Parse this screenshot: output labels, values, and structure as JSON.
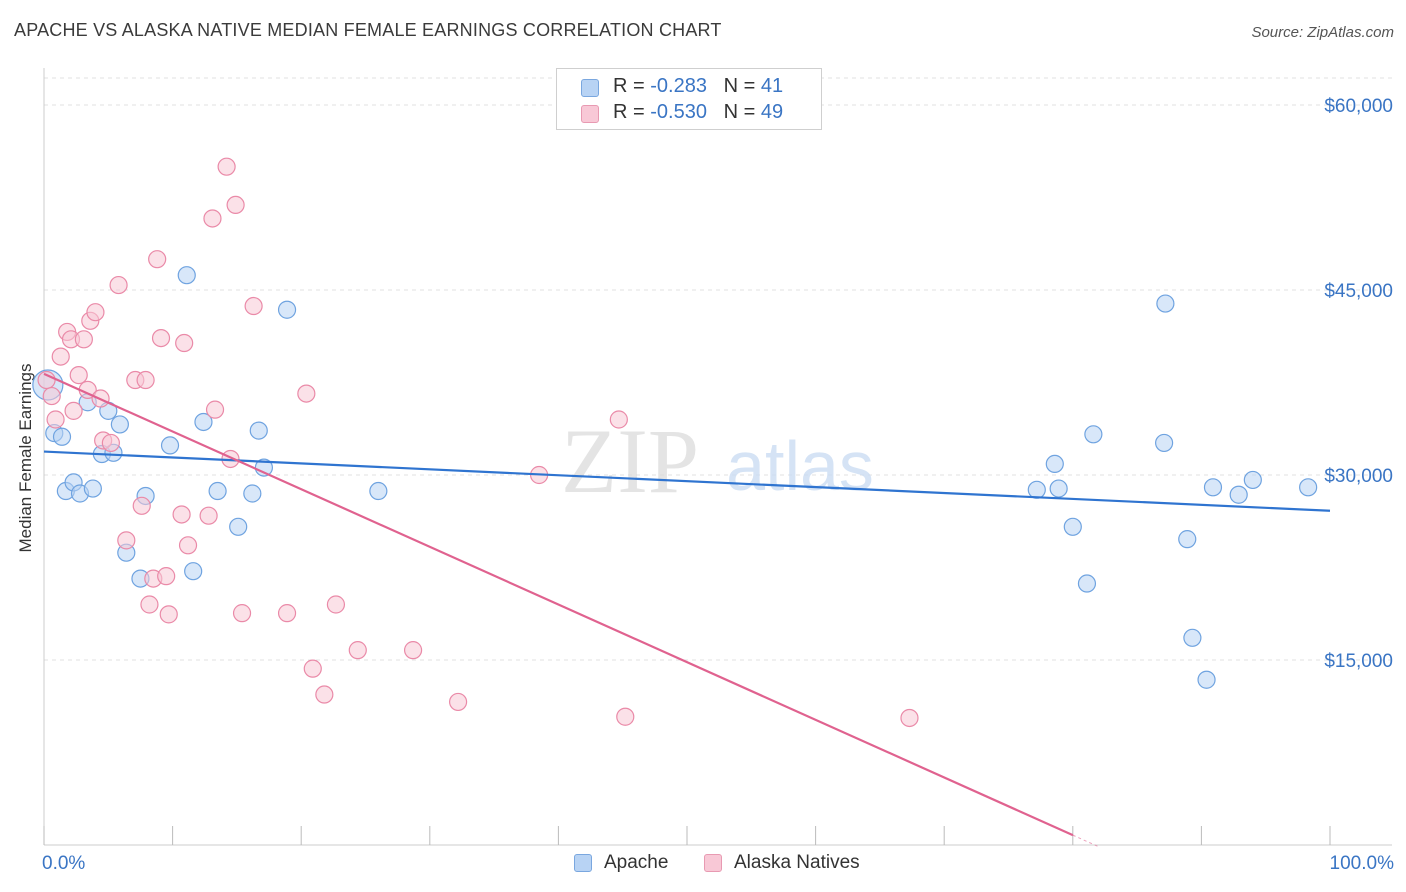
{
  "header": {
    "title": "APACHE VS ALASKA NATIVE MEDIAN FEMALE EARNINGS CORRELATION CHART",
    "source": "Source: ZipAtlas.com"
  },
  "legend": {
    "rows": [
      {
        "r_label": "R = ",
        "r_value": "-0.283",
        "n_label": "N = ",
        "n_value": "41",
        "color": "#b8d3f4"
      },
      {
        "r_label": "R = ",
        "r_value": "-0.530",
        "n_label": "N = ",
        "n_value": "49",
        "color": "#f8c8d6"
      }
    ],
    "series_names": [
      "Apache",
      "Alaska Natives"
    ]
  },
  "watermark": {
    "zip": "ZIP",
    "atlas": "atlas"
  },
  "chart_data": {
    "type": "scatter",
    "title": "APACHE VS ALASKA NATIVE MEDIAN FEMALE EARNINGS CORRELATION CHART",
    "xlabel": "",
    "ylabel": "Median Female Earnings",
    "xlim": [
      0,
      100
    ],
    "ylim": [
      0,
      63000
    ],
    "x_tick_labels": [
      "0.0%",
      "100.0%"
    ],
    "y_ticks": [
      15000,
      30000,
      45000,
      60000
    ],
    "y_tick_labels": [
      "$15,000",
      "$30,000",
      "$45,000",
      "$60,000"
    ],
    "grid": true,
    "series": [
      {
        "name": "Apache",
        "color": "#6fa3e0",
        "fill": "#b8d3f4",
        "trend": {
          "x": [
            0,
            100
          ],
          "y": [
            31900,
            27100
          ],
          "color": "#2f74d0"
        },
        "points": [
          {
            "x": 0.3,
            "y": 37300,
            "big": true
          },
          {
            "x": 0.8,
            "y": 33400
          },
          {
            "x": 1.4,
            "y": 33100
          },
          {
            "x": 1.7,
            "y": 28700
          },
          {
            "x": 2.3,
            "y": 29400
          },
          {
            "x": 2.8,
            "y": 28500
          },
          {
            "x": 3.8,
            "y": 28900
          },
          {
            "x": 3.4,
            "y": 35900
          },
          {
            "x": 4.5,
            "y": 31700
          },
          {
            "x": 5.0,
            "y": 35200
          },
          {
            "x": 5.4,
            "y": 31800
          },
          {
            "x": 5.9,
            "y": 34100
          },
          {
            "x": 6.4,
            "y": 23700
          },
          {
            "x": 7.5,
            "y": 21600
          },
          {
            "x": 7.9,
            "y": 28300
          },
          {
            "x": 9.8,
            "y": 32400
          },
          {
            "x": 11.1,
            "y": 46200
          },
          {
            "x": 11.6,
            "y": 22200
          },
          {
            "x": 12.4,
            "y": 34300
          },
          {
            "x": 13.5,
            "y": 28700
          },
          {
            "x": 15.1,
            "y": 25800
          },
          {
            "x": 16.2,
            "y": 28500
          },
          {
            "x": 16.7,
            "y": 33600
          },
          {
            "x": 17.1,
            "y": 30600
          },
          {
            "x": 18.9,
            "y": 43400
          },
          {
            "x": 26.0,
            "y": 28700
          },
          {
            "x": 77.2,
            "y": 28800
          },
          {
            "x": 78.6,
            "y": 30900
          },
          {
            "x": 78.9,
            "y": 28900
          },
          {
            "x": 80.0,
            "y": 25800
          },
          {
            "x": 81.1,
            "y": 21200
          },
          {
            "x": 81.6,
            "y": 33300
          },
          {
            "x": 87.1,
            "y": 32600
          },
          {
            "x": 87.2,
            "y": 43900
          },
          {
            "x": 88.9,
            "y": 24800
          },
          {
            "x": 89.3,
            "y": 16800
          },
          {
            "x": 90.4,
            "y": 13400
          },
          {
            "x": 90.9,
            "y": 29000
          },
          {
            "x": 92.9,
            "y": 28400
          },
          {
            "x": 94.0,
            "y": 29600
          },
          {
            "x": 98.3,
            "y": 29000
          }
        ]
      },
      {
        "name": "Alaska Natives",
        "color": "#ea8aa8",
        "fill": "#f8c8d6",
        "trend": {
          "x": [
            0,
            80
          ],
          "y": [
            38200,
            800
          ],
          "color": "#e0628f"
        },
        "points": [
          {
            "x": 0.2,
            "y": 37700
          },
          {
            "x": 0.6,
            "y": 36400
          },
          {
            "x": 0.9,
            "y": 34500
          },
          {
            "x": 1.3,
            "y": 39600
          },
          {
            "x": 1.8,
            "y": 41600
          },
          {
            "x": 2.1,
            "y": 41000
          },
          {
            "x": 2.3,
            "y": 35200
          },
          {
            "x": 2.7,
            "y": 38100
          },
          {
            "x": 3.1,
            "y": 41000
          },
          {
            "x": 3.4,
            "y": 36900
          },
          {
            "x": 3.6,
            "y": 42500
          },
          {
            "x": 4.0,
            "y": 43200
          },
          {
            "x": 4.4,
            "y": 36200
          },
          {
            "x": 4.6,
            "y": 32800
          },
          {
            "x": 5.2,
            "y": 32600
          },
          {
            "x": 5.8,
            "y": 45400
          },
          {
            "x": 6.4,
            "y": 24700
          },
          {
            "x": 7.1,
            "y": 37700
          },
          {
            "x": 7.6,
            "y": 27500
          },
          {
            "x": 7.9,
            "y": 37700
          },
          {
            "x": 8.2,
            "y": 19500
          },
          {
            "x": 8.5,
            "y": 21600
          },
          {
            "x": 8.8,
            "y": 47500
          },
          {
            "x": 9.1,
            "y": 41100
          },
          {
            "x": 9.5,
            "y": 21800
          },
          {
            "x": 9.7,
            "y": 18700
          },
          {
            "x": 10.7,
            "y": 26800
          },
          {
            "x": 10.9,
            "y": 40700
          },
          {
            "x": 11.2,
            "y": 24300
          },
          {
            "x": 12.8,
            "y": 26700
          },
          {
            "x": 13.1,
            "y": 50800
          },
          {
            "x": 13.3,
            "y": 35300
          },
          {
            "x": 14.2,
            "y": 55000
          },
          {
            "x": 14.5,
            "y": 31300
          },
          {
            "x": 14.9,
            "y": 51900
          },
          {
            "x": 15.4,
            "y": 18800
          },
          {
            "x": 16.3,
            "y": 43700
          },
          {
            "x": 18.9,
            "y": 18800
          },
          {
            "x": 20.4,
            "y": 36600
          },
          {
            "x": 20.9,
            "y": 14300
          },
          {
            "x": 21.8,
            "y": 12200
          },
          {
            "x": 22.7,
            "y": 19500
          },
          {
            "x": 24.4,
            "y": 15800
          },
          {
            "x": 28.7,
            "y": 15800
          },
          {
            "x": 32.2,
            "y": 11600
          },
          {
            "x": 38.5,
            "y": 30000
          },
          {
            "x": 44.7,
            "y": 34500
          },
          {
            "x": 45.2,
            "y": 10400
          },
          {
            "x": 67.3,
            "y": 10300
          }
        ]
      }
    ]
  }
}
